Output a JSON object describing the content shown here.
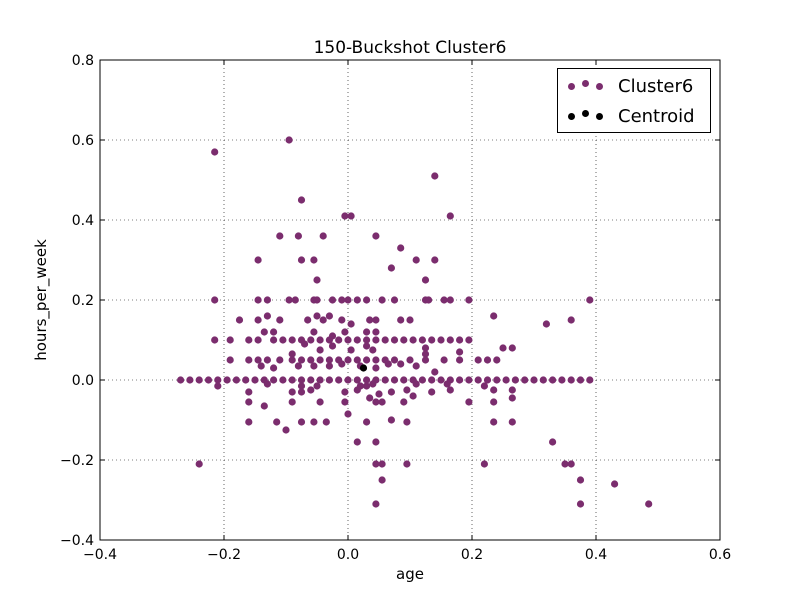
{
  "chart_data": {
    "type": "scatter",
    "title": "150-Buckshot Cluster6",
    "xlabel": "age",
    "ylabel": "hours_per_week",
    "xlim": [
      -0.4,
      0.6
    ],
    "ylim": [
      -0.4,
      0.8
    ],
    "xticks": [
      "−0.4",
      "−0.2",
      "0.0",
      "0.2",
      "0.4",
      "0.6"
    ],
    "yticks": [
      "−0.4",
      "−0.2",
      "0.0",
      "0.2",
      "0.4",
      "0.6",
      "0.8"
    ],
    "grid": true,
    "legend_position": "top-right",
    "series": [
      {
        "name": "Cluster6",
        "color": "#7b2d6e",
        "points": [
          [
            -0.27,
            0.0
          ],
          [
            -0.255,
            0.0
          ],
          [
            -0.24,
            0.0
          ],
          [
            -0.225,
            0.0
          ],
          [
            -0.21,
            0.0
          ],
          [
            -0.195,
            0.0
          ],
          [
            -0.18,
            0.0
          ],
          [
            -0.165,
            0.0
          ],
          [
            -0.15,
            0.0
          ],
          [
            -0.135,
            0.0
          ],
          [
            -0.12,
            0.0
          ],
          [
            -0.105,
            0.0
          ],
          [
            -0.09,
            0.0
          ],
          [
            -0.075,
            0.0
          ],
          [
            -0.06,
            0.0
          ],
          [
            -0.045,
            0.0
          ],
          [
            -0.03,
            0.0
          ],
          [
            -0.015,
            0.0
          ],
          [
            0.0,
            0.0
          ],
          [
            0.015,
            0.0
          ],
          [
            0.03,
            0.0
          ],
          [
            0.045,
            0.0
          ],
          [
            0.06,
            0.0
          ],
          [
            0.075,
            0.0
          ],
          [
            0.09,
            0.0
          ],
          [
            0.105,
            0.0
          ],
          [
            0.12,
            0.0
          ],
          [
            0.135,
            0.0
          ],
          [
            0.15,
            0.0
          ],
          [
            0.165,
            0.0
          ],
          [
            0.18,
            0.0
          ],
          [
            0.195,
            0.0
          ],
          [
            0.21,
            0.0
          ],
          [
            0.225,
            0.0
          ],
          [
            0.24,
            0.0
          ],
          [
            0.255,
            0.0
          ],
          [
            0.27,
            0.0
          ],
          [
            0.285,
            0.0
          ],
          [
            0.3,
            0.0
          ],
          [
            0.315,
            0.0
          ],
          [
            0.33,
            0.0
          ],
          [
            0.345,
            0.0
          ],
          [
            0.36,
            0.0
          ],
          [
            0.375,
            0.0
          ],
          [
            0.39,
            0.0
          ],
          [
            -0.215,
            0.57
          ],
          [
            -0.095,
            0.6
          ],
          [
            0.14,
            0.51
          ],
          [
            -0.075,
            0.45
          ],
          [
            0.165,
            0.41
          ],
          [
            -0.005,
            0.41
          ],
          [
            0.005,
            0.41
          ],
          [
            -0.11,
            0.36
          ],
          [
            -0.08,
            0.36
          ],
          [
            -0.04,
            0.36
          ],
          [
            0.045,
            0.36
          ],
          [
            0.085,
            0.33
          ],
          [
            -0.145,
            0.3
          ],
          [
            -0.075,
            0.3
          ],
          [
            -0.055,
            0.3
          ],
          [
            0.11,
            0.3
          ],
          [
            0.14,
            0.3
          ],
          [
            0.07,
            0.28
          ],
          [
            -0.05,
            0.25
          ],
          [
            0.125,
            0.25
          ],
          [
            -0.215,
            0.2
          ],
          [
            -0.145,
            0.2
          ],
          [
            -0.13,
            0.2
          ],
          [
            -0.095,
            0.2
          ],
          [
            -0.085,
            0.2
          ],
          [
            -0.055,
            0.2
          ],
          [
            -0.05,
            0.2
          ],
          [
            -0.025,
            0.2
          ],
          [
            -0.01,
            0.2
          ],
          [
            0.0,
            0.2
          ],
          [
            0.015,
            0.2
          ],
          [
            0.03,
            0.2
          ],
          [
            0.055,
            0.2
          ],
          [
            0.075,
            0.2
          ],
          [
            0.125,
            0.2
          ],
          [
            0.13,
            0.2
          ],
          [
            0.155,
            0.2
          ],
          [
            0.165,
            0.2
          ],
          [
            0.195,
            0.2
          ],
          [
            0.39,
            0.2
          ],
          [
            -0.175,
            0.15
          ],
          [
            -0.145,
            0.15
          ],
          [
            -0.13,
            0.16
          ],
          [
            -0.11,
            0.15
          ],
          [
            -0.065,
            0.15
          ],
          [
            -0.05,
            0.16
          ],
          [
            -0.04,
            0.15
          ],
          [
            -0.03,
            0.16
          ],
          [
            -0.01,
            0.15
          ],
          [
            0.005,
            0.14
          ],
          [
            0.035,
            0.15
          ],
          [
            0.045,
            0.15
          ],
          [
            0.085,
            0.15
          ],
          [
            0.1,
            0.15
          ],
          [
            0.235,
            0.16
          ],
          [
            0.32,
            0.14
          ],
          [
            0.36,
            0.15
          ],
          [
            -0.135,
            0.12
          ],
          [
            -0.12,
            0.12
          ],
          [
            -0.055,
            0.12
          ],
          [
            -0.025,
            0.11
          ],
          [
            -0.005,
            0.12
          ],
          [
            0.03,
            0.12
          ],
          [
            0.045,
            0.12
          ],
          [
            -0.215,
            0.1
          ],
          [
            -0.19,
            0.1
          ],
          [
            -0.16,
            0.1
          ],
          [
            -0.145,
            0.1
          ],
          [
            -0.12,
            0.1
          ],
          [
            -0.105,
            0.1
          ],
          [
            -0.09,
            0.1
          ],
          [
            -0.075,
            0.1
          ],
          [
            -0.06,
            0.1
          ],
          [
            -0.045,
            0.1
          ],
          [
            -0.03,
            0.1
          ],
          [
            -0.015,
            0.1
          ],
          [
            0.0,
            0.1
          ],
          [
            0.015,
            0.1
          ],
          [
            0.03,
            0.1
          ],
          [
            0.045,
            0.1
          ],
          [
            0.06,
            0.1
          ],
          [
            0.075,
            0.1
          ],
          [
            0.09,
            0.1
          ],
          [
            0.105,
            0.1
          ],
          [
            0.12,
            0.1
          ],
          [
            0.135,
            0.1
          ],
          [
            0.15,
            0.1
          ],
          [
            0.165,
            0.1
          ],
          [
            0.18,
            0.1
          ],
          [
            0.195,
            0.1
          ],
          [
            -0.07,
            0.09
          ],
          [
            -0.025,
            0.085
          ],
          [
            0.03,
            0.085
          ],
          [
            0.125,
            0.08
          ],
          [
            0.25,
            0.08
          ],
          [
            0.265,
            0.08
          ],
          [
            -0.045,
            0.075
          ],
          [
            0.005,
            0.075
          ],
          [
            0.04,
            0.075
          ],
          [
            0.18,
            0.07
          ],
          [
            0.125,
            0.065
          ],
          [
            -0.09,
            0.065
          ],
          [
            -0.19,
            0.05
          ],
          [
            -0.16,
            0.05
          ],
          [
            -0.145,
            0.05
          ],
          [
            -0.13,
            0.05
          ],
          [
            -0.11,
            0.05
          ],
          [
            -0.09,
            0.05
          ],
          [
            -0.075,
            0.05
          ],
          [
            -0.06,
            0.05
          ],
          [
            -0.045,
            0.05
          ],
          [
            -0.03,
            0.05
          ],
          [
            -0.015,
            0.05
          ],
          [
            0.0,
            0.05
          ],
          [
            0.015,
            0.05
          ],
          [
            0.03,
            0.05
          ],
          [
            0.045,
            0.05
          ],
          [
            0.06,
            0.05
          ],
          [
            0.075,
            0.05
          ],
          [
            0.1,
            0.05
          ],
          [
            0.125,
            0.05
          ],
          [
            0.155,
            0.05
          ],
          [
            0.18,
            0.05
          ],
          [
            0.21,
            0.05
          ],
          [
            0.225,
            0.05
          ],
          [
            0.24,
            0.05
          ],
          [
            -0.14,
            0.035
          ],
          [
            -0.12,
            0.03
          ],
          [
            -0.08,
            0.035
          ],
          [
            -0.055,
            0.035
          ],
          [
            -0.03,
            0.035
          ],
          [
            -0.01,
            0.04
          ],
          [
            0.02,
            0.035
          ],
          [
            0.045,
            0.03
          ],
          [
            0.065,
            0.04
          ],
          [
            0.085,
            0.04
          ],
          [
            0.11,
            0.035
          ],
          [
            0.14,
            0.02
          ],
          [
            -0.21,
            -0.015
          ],
          [
            -0.075,
            -0.015
          ],
          [
            -0.05,
            -0.015
          ],
          [
            0.02,
            -0.015
          ],
          [
            0.03,
            -0.015
          ],
          [
            0.22,
            -0.015
          ],
          [
            -0.13,
            -0.01
          ],
          [
            0.16,
            -0.01
          ],
          [
            0.11,
            -0.01
          ],
          [
            0.04,
            -0.01
          ],
          [
            -0.16,
            -0.03
          ],
          [
            -0.09,
            -0.03
          ],
          [
            -0.075,
            -0.03
          ],
          [
            -0.06,
            -0.025
          ],
          [
            -0.005,
            -0.03
          ],
          [
            0.015,
            -0.025
          ],
          [
            0.05,
            -0.035
          ],
          [
            0.07,
            -0.03
          ],
          [
            0.095,
            -0.025
          ],
          [
            0.165,
            -0.025
          ],
          [
            0.235,
            -0.025
          ],
          [
            0.265,
            -0.025
          ],
          [
            0.135,
            -0.03
          ],
          [
            -0.16,
            -0.055
          ],
          [
            -0.135,
            -0.065
          ],
          [
            -0.09,
            -0.055
          ],
          [
            -0.045,
            -0.055
          ],
          [
            -0.005,
            -0.055
          ],
          [
            0.045,
            -0.055
          ],
          [
            0.055,
            -0.055
          ],
          [
            0.09,
            -0.055
          ],
          [
            0.195,
            -0.055
          ],
          [
            0.235,
            -0.055
          ],
          [
            0.265,
            -0.045
          ],
          [
            0.035,
            -0.045
          ],
          [
            0.105,
            -0.04
          ],
          [
            -0.16,
            -0.105
          ],
          [
            -0.115,
            -0.105
          ],
          [
            -0.075,
            -0.105
          ],
          [
            -0.055,
            -0.105
          ],
          [
            -0.035,
            -0.105
          ],
          [
            0.0,
            -0.085
          ],
          [
            0.03,
            -0.105
          ],
          [
            0.07,
            -0.1
          ],
          [
            0.095,
            -0.105
          ],
          [
            0.235,
            -0.105
          ],
          [
            0.265,
            -0.105
          ],
          [
            -0.1,
            -0.125
          ],
          [
            0.015,
            -0.155
          ],
          [
            0.045,
            -0.155
          ],
          [
            0.33,
            -0.155
          ],
          [
            -0.24,
            -0.21
          ],
          [
            0.045,
            -0.21
          ],
          [
            0.055,
            -0.21
          ],
          [
            0.095,
            -0.21
          ],
          [
            0.22,
            -0.21
          ],
          [
            0.35,
            -0.21
          ],
          [
            0.36,
            -0.21
          ],
          [
            0.055,
            -0.25
          ],
          [
            0.375,
            -0.25
          ],
          [
            0.43,
            -0.26
          ],
          [
            0.045,
            -0.31
          ],
          [
            0.375,
            -0.31
          ],
          [
            0.485,
            -0.31
          ]
        ]
      },
      {
        "name": "Centroid",
        "color": "#000000",
        "points": [
          [
            0.025,
            0.03
          ]
        ]
      }
    ]
  }
}
